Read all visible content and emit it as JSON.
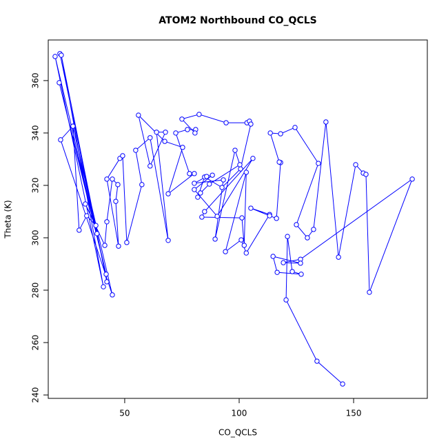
{
  "chart_data": {
    "type": "scatter",
    "connect": true,
    "title": "ATOM2 Northbound CO_QCLS",
    "x_label": "CO_QCLS",
    "y_label": "Theta (K)",
    "xlim": [
      16.6,
      182.2
    ],
    "ylim": [
      238.7,
      375.5
    ],
    "xticks": [
      50,
      100,
      150
    ],
    "yticks": [
      240,
      260,
      280,
      300,
      320,
      340,
      360
    ],
    "x": [
      21.7,
      42.2,
      22.3,
      40.7,
      19.6,
      41.9,
      21.4,
      37.9,
      27.4,
      44.6,
      22.0,
      27.4,
      30.1,
      33.4,
      37.4,
      32.8,
      41.3,
      42.2,
      44.6,
      47.0,
      46.1,
      47.3,
      42.2,
      47.9,
      49.1,
      50.9,
      57.5,
      54.8,
      61.1,
      69.0,
      63.9,
      67.8,
      61.1,
      56.0,
      67.5,
      75.3,
      69.0,
      80.4,
      78.3,
      72.3,
      77.4,
      81.0,
      80.7,
      75.0,
      82.5,
      94.3,
      103.4,
      104.5,
      105.1,
      100.6,
      92.5,
      84.9,
      81.9,
      83.1,
      87.0,
      100.3,
      98.2,
      89.5,
      93.1,
      80.4,
      85.8,
      88.3,
      80.4,
      90.4,
      106.0,
      84.9,
      83.7,
      101.2,
      102.2,
      103.1,
      94.0,
      100.9,
      103.1,
      113.3,
      105.1,
      113.3,
      116.3,
      118.1,
      117.5,
      113.6,
      118.1,
      124.4,
      134.6,
      125.0,
      129.8,
      132.5,
      137.9,
      143.4,
      150.9,
      154.2,
      155.4,
      156.9,
      175.6,
      126.8,
      119.3,
      126.8,
      114.8,
      116.6,
      127.1,
      123.2,
      121.1,
      120.5,
      134.0,
      145.2
    ],
    "series": [
      {
        "name": "CO_QCLS",
        "color": "#0000ff",
        "values": [
          370.3,
          283.2,
          369.7,
          281.3,
          369.2,
          286.1,
          359.2,
          301.6,
          342.6,
          278.2,
          337.4,
          342.6,
          302.9,
          308.4,
          304.7,
          312.9,
          297.1,
          306.1,
          322.4,
          320.3,
          313.9,
          296.8,
          322.4,
          330.3,
          331.3,
          298.2,
          320.3,
          333.4,
          338.2,
          299.0,
          340.3,
          340.3,
          327.4,
          346.8,
          336.8,
          334.5,
          316.8,
          324.5,
          324.5,
          340.0,
          341.3,
          341.3,
          340.0,
          345.3,
          347.1,
          343.9,
          343.9,
          344.5,
          343.4,
          326.3,
          319.2,
          323.2,
          315.5,
          317.1,
          320.5,
          327.9,
          333.4,
          299.5,
          322.1,
          320.8,
          323.4,
          323.9,
          318.4,
          308.2,
          330.3,
          310.0,
          307.9,
          307.6,
          297.1,
          325.0,
          294.7,
          299.2,
          294.2,
          308.9,
          311.3,
          308.4,
          307.4,
          328.7,
          328.9,
          340.0,
          339.7,
          342.1,
          328.4,
          305.0,
          300.0,
          303.2,
          344.2,
          292.6,
          327.9,
          324.7,
          324.2,
          279.2,
          322.4,
          291.8,
          290.5,
          290.3,
          292.9,
          286.8,
          286.1,
          287.1,
          300.5,
          276.3,
          252.9,
          244.2
        ]
      }
    ]
  }
}
